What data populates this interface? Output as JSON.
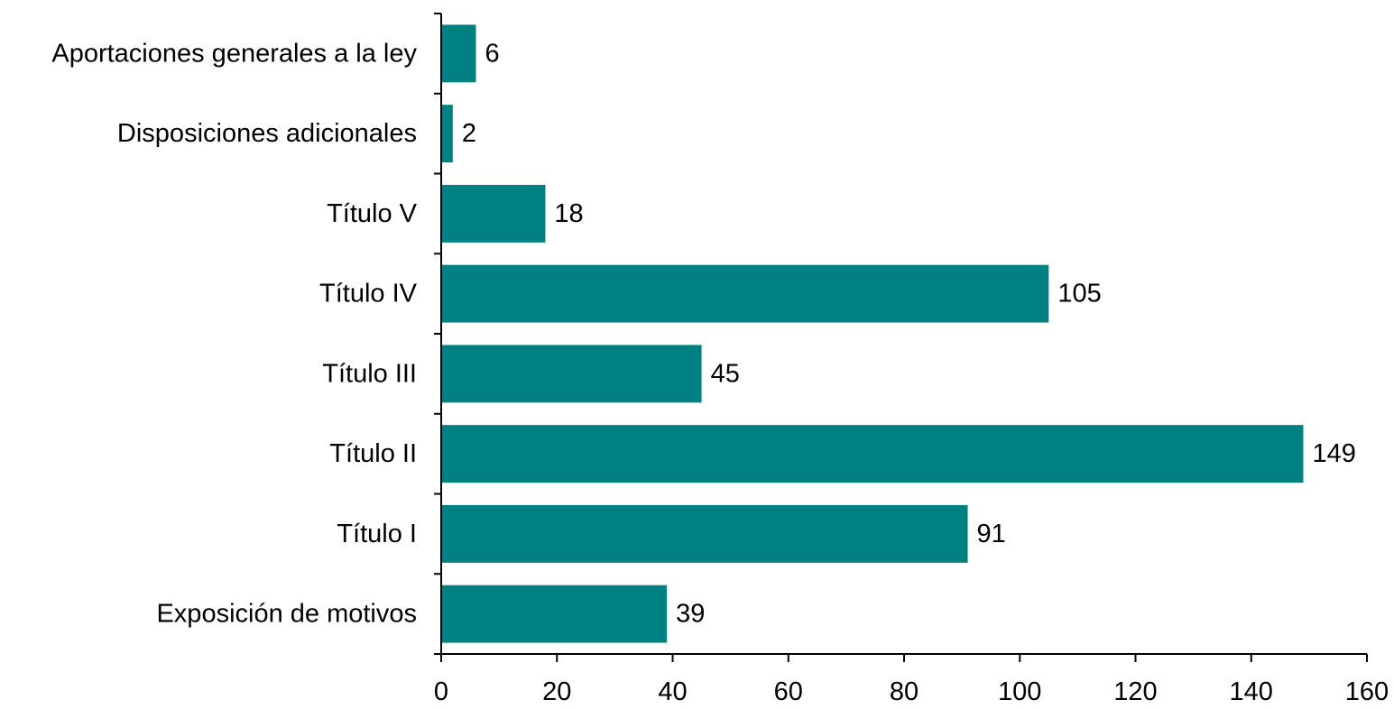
{
  "chart_data": {
    "type": "bar",
    "orientation": "horizontal",
    "title": "",
    "xlabel": "",
    "ylabel": "",
    "categories": [
      "Aportaciones generales a la ley",
      "Disposiciones adicionales",
      "Título V",
      "Título IV",
      "Título III",
      "Título II",
      "Título I",
      "Exposición de motivos"
    ],
    "values": [
      6,
      2,
      18,
      105,
      45,
      149,
      91,
      39
    ],
    "xlim": [
      0,
      160
    ],
    "xticks": [
      0,
      20,
      40,
      60,
      80,
      100,
      120,
      140,
      160
    ],
    "bar_color": "#008080",
    "grid": false,
    "legend": "none",
    "data_labels": true
  }
}
